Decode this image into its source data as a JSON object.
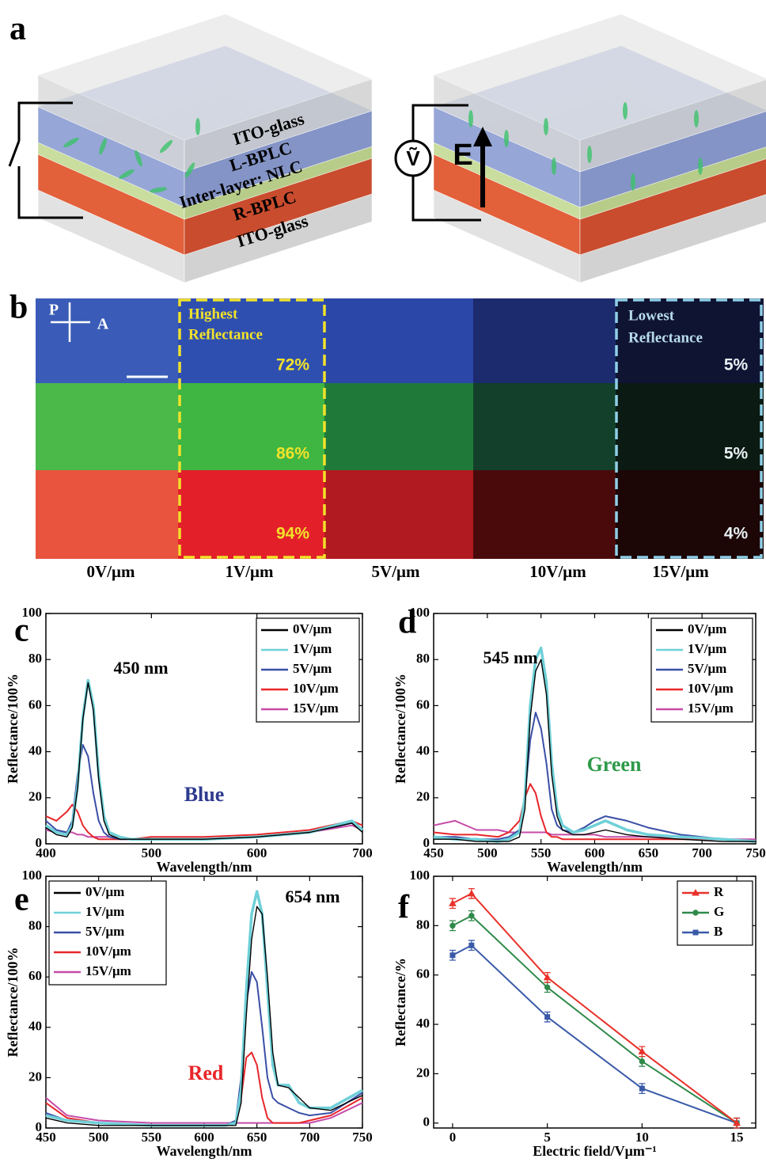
{
  "panel_labels": [
    "a",
    "b",
    "c",
    "d",
    "e",
    "f"
  ],
  "diagram": {
    "layers": [
      "ITO-glass",
      "L-BPLC",
      "Inter-layer: NLC",
      "R-BPLC",
      "ITO-glass"
    ],
    "source": "Ṽ",
    "field": "E"
  },
  "micrograph": {
    "polarizer": "P",
    "analyzer": "A",
    "highest_label": [
      "Highest",
      "Reflectance"
    ],
    "lowest_label": [
      "Lowest",
      "Reflectance"
    ],
    "highest_values": [
      "72%",
      "86%",
      "94%"
    ],
    "lowest_values": [
      "5%",
      "5%",
      "4%"
    ],
    "columns": [
      "0V/μm",
      "1V/μm",
      "5V/μm",
      "10V/μm",
      "15V/μm"
    ]
  },
  "chart_data": [
    {
      "type": "line",
      "xlabel": "Wavelength/nm",
      "ylabel": "Reflectance/100%",
      "peak_label": "450 nm",
      "color_label": "Blue",
      "color_label_color": "#2e3b8f",
      "legend": "upper right",
      "xlim": [
        400,
        700
      ],
      "xticks": [
        400,
        500,
        600,
        700
      ],
      "ylim": [
        0,
        100
      ],
      "yticks": [
        0,
        20,
        40,
        60,
        80,
        100
      ],
      "x": [
        400,
        410,
        420,
        425,
        430,
        435,
        440,
        445,
        450,
        455,
        460,
        470,
        480,
        500,
        550,
        600,
        650,
        690,
        700
      ],
      "series": [
        {
          "name": "0V/μm",
          "color": "#000000",
          "values": [
            7,
            4,
            3,
            7,
            24,
            54,
            70,
            58,
            28,
            10,
            4,
            2,
            2,
            2,
            2,
            3,
            5,
            9,
            5
          ]
        },
        {
          "name": "1V/μm",
          "color": "#6fd0d8",
          "values": [
            8,
            5,
            4,
            8,
            25,
            55,
            71,
            60,
            30,
            12,
            5,
            3,
            2,
            2,
            2,
            3,
            5,
            10,
            6
          ]
        },
        {
          "name": "5V/μm",
          "color": "#3a4fa6",
          "values": [
            10,
            6,
            5,
            10,
            30,
            43,
            38,
            22,
            10,
            5,
            3,
            2,
            2,
            2,
            2,
            3,
            5,
            9,
            6
          ]
        },
        {
          "name": "10V/μm",
          "color": "#e8262a",
          "values": [
            12,
            10,
            14,
            17,
            14,
            8,
            5,
            3,
            2,
            2,
            2,
            2,
            2,
            3,
            3,
            4,
            6,
            10,
            8
          ]
        },
        {
          "name": "15V/μm",
          "color": "#c64ba8",
          "values": [
            6,
            5,
            5,
            5,
            4,
            4,
            3,
            3,
            3,
            3,
            3,
            3,
            2,
            2,
            2,
            3,
            5,
            8,
            6
          ]
        }
      ]
    },
    {
      "type": "line",
      "xlabel": "Wavelength/nm",
      "ylabel": "Reflectance/100%",
      "peak_label": "545 nm",
      "color_label": "Green",
      "color_label_color": "#2f9a4a",
      "legend": "upper right",
      "xlim": [
        450,
        750
      ],
      "xticks": [
        450,
        500,
        550,
        600,
        650,
        700,
        750
      ],
      "ylim": [
        0,
        100
      ],
      "yticks": [
        0,
        20,
        40,
        60,
        80,
        100
      ],
      "x": [
        450,
        470,
        490,
        510,
        520,
        530,
        535,
        540,
        545,
        550,
        555,
        560,
        565,
        570,
        580,
        590,
        600,
        610,
        630,
        650,
        680,
        720,
        750
      ],
      "series": [
        {
          "name": "0V/μm",
          "color": "#000000",
          "values": [
            2,
            2,
            1,
            1,
            1,
            3,
            15,
            55,
            75,
            80,
            65,
            30,
            12,
            6,
            4,
            4,
            5,
            6,
            4,
            3,
            2,
            1,
            1
          ]
        },
        {
          "name": "1V/μm",
          "color": "#6fd0d8",
          "values": [
            3,
            2,
            2,
            1,
            2,
            5,
            20,
            60,
            80,
            85,
            70,
            35,
            15,
            8,
            5,
            6,
            8,
            10,
            6,
            4,
            3,
            2,
            1
          ]
        },
        {
          "name": "5V/μm",
          "color": "#3a4fa6",
          "values": [
            3,
            3,
            2,
            2,
            3,
            6,
            20,
            45,
            57,
            50,
            35,
            15,
            8,
            6,
            5,
            7,
            10,
            12,
            10,
            7,
            4,
            2,
            1
          ]
        },
        {
          "name": "10V/μm",
          "color": "#e8262a",
          "values": [
            5,
            4,
            4,
            3,
            5,
            10,
            20,
            26,
            22,
            12,
            5,
            3,
            3,
            2,
            2,
            2,
            2,
            2,
            2,
            2,
            2,
            2,
            1
          ]
        },
        {
          "name": "15V/μm",
          "color": "#c64ba8",
          "values": [
            8,
            10,
            6,
            6,
            5,
            5,
            5,
            5,
            5,
            5,
            5,
            4,
            4,
            4,
            4,
            4,
            4,
            3,
            3,
            3,
            3,
            2,
            2
          ]
        }
      ]
    },
    {
      "type": "line",
      "xlabel": "Wavelength/nm",
      "ylabel": "Reflectance/100%",
      "peak_label": "654 nm",
      "color_label": "Red",
      "color_label_color": "#e8262a",
      "legend": "upper left",
      "xlim": [
        450,
        750
      ],
      "xticks": [
        450,
        500,
        550,
        600,
        650,
        700,
        750
      ],
      "ylim": [
        0,
        100
      ],
      "yticks": [
        0,
        20,
        40,
        60,
        80,
        100
      ],
      "x": [
        450,
        470,
        500,
        550,
        600,
        620,
        630,
        635,
        640,
        645,
        650,
        655,
        660,
        665,
        670,
        680,
        690,
        700,
        720,
        750
      ],
      "series": [
        {
          "name": "0V/μm",
          "color": "#000000",
          "values": [
            4,
            2,
            1,
            1,
            1,
            1,
            1,
            10,
            45,
            75,
            88,
            85,
            60,
            30,
            17,
            16,
            12,
            8,
            7,
            13
          ]
        },
        {
          "name": "1V/μm",
          "color": "#6fd0d8",
          "values": [
            5,
            3,
            2,
            1,
            1,
            1,
            2,
            15,
            55,
            85,
            94,
            85,
            55,
            25,
            17,
            17,
            10,
            8,
            8,
            15
          ]
        },
        {
          "name": "5V/μm",
          "color": "#3a4fa6",
          "values": [
            6,
            3,
            2,
            1,
            1,
            1,
            3,
            20,
            50,
            62,
            58,
            40,
            20,
            12,
            10,
            8,
            6,
            5,
            6,
            14
          ]
        },
        {
          "name": "10V/μm",
          "color": "#e8262a",
          "values": [
            10,
            4,
            2,
            1,
            1,
            1,
            3,
            12,
            28,
            30,
            25,
            12,
            4,
            2,
            2,
            2,
            2,
            3,
            5,
            12
          ]
        },
        {
          "name": "15V/μm",
          "color": "#c64ba8",
          "values": [
            12,
            5,
            3,
            2,
            2,
            2,
            2,
            2,
            2,
            2,
            2,
            2,
            2,
            2,
            2,
            2,
            2,
            2,
            4,
            10
          ]
        }
      ]
    },
    {
      "type": "errorline",
      "xlabel": "Electric field/Vμm⁻¹",
      "ylabel": "Reflectance/%",
      "legend": "upper right",
      "xlim": [
        -1,
        16
      ],
      "xticks": [
        0,
        5,
        10,
        15
      ],
      "ylim": [
        -2,
        100
      ],
      "yticks": [
        0,
        20,
        40,
        60,
        80,
        100
      ],
      "x": [
        0,
        1,
        5,
        10,
        15
      ],
      "series": [
        {
          "name": "R",
          "color": "#e8322a",
          "marker": "triangle",
          "values": [
            89,
            93,
            59,
            29,
            0
          ],
          "errors": [
            2,
            2,
            2,
            2,
            2
          ]
        },
        {
          "name": "G",
          "color": "#2f8a4a",
          "marker": "circle",
          "values": [
            80,
            84,
            55,
            25,
            0
          ],
          "errors": [
            2,
            2,
            2,
            2,
            2
          ]
        },
        {
          "name": "B",
          "color": "#3a5aa8",
          "marker": "square",
          "values": [
            68,
            72,
            43,
            14,
            0
          ],
          "errors": [
            2,
            2,
            2,
            2,
            2
          ]
        }
      ]
    }
  ]
}
